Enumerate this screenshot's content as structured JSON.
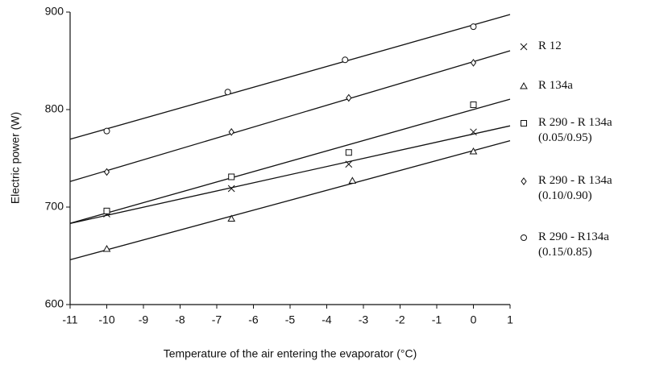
{
  "chart_data": {
    "type": "scatter",
    "xlabel": "Temperature of the air entering the evaporator (°C)",
    "ylabel": "Electric power (W)",
    "xlim": [
      -11,
      1
    ],
    "xticks": [
      -11,
      -10,
      -9,
      -8,
      -7,
      -6,
      -5,
      -4,
      -3,
      -2,
      -1,
      0,
      1
    ],
    "ylim": [
      600,
      900
    ],
    "yticks": [
      600,
      700,
      800,
      900
    ],
    "trendline": true,
    "legend": "right",
    "series": [
      {
        "name": "R 12",
        "marker": "x",
        "color": "#111111",
        "x": [
          -10,
          -6.6,
          -3.4,
          0
        ],
        "values": [
          693,
          719,
          744,
          777
        ]
      },
      {
        "name": "R 134a",
        "marker": "triangle",
        "color": "#111111",
        "x": [
          -10,
          -6.6,
          -3.3,
          0
        ],
        "values": [
          657,
          688,
          727,
          757
        ]
      },
      {
        "name": "R 290 - R 134a (0.05/0.95)",
        "marker": "square",
        "color": "#111111",
        "x": [
          -10,
          -6.6,
          -3.4,
          0
        ],
        "values": [
          696,
          731,
          756,
          805
        ]
      },
      {
        "name": "R 290 - R 134a (0.10/0.90)",
        "marker": "diamond",
        "color": "#111111",
        "x": [
          -10,
          -6.6,
          -3.4,
          0
        ],
        "values": [
          736,
          777,
          812,
          848
        ]
      },
      {
        "name": "R 290 - R134a (0.15/0.85)",
        "marker": "circle",
        "color": "#111111",
        "x": [
          -10,
          -6.7,
          -3.5,
          0
        ],
        "values": [
          778,
          818,
          851,
          885
        ]
      }
    ]
  }
}
